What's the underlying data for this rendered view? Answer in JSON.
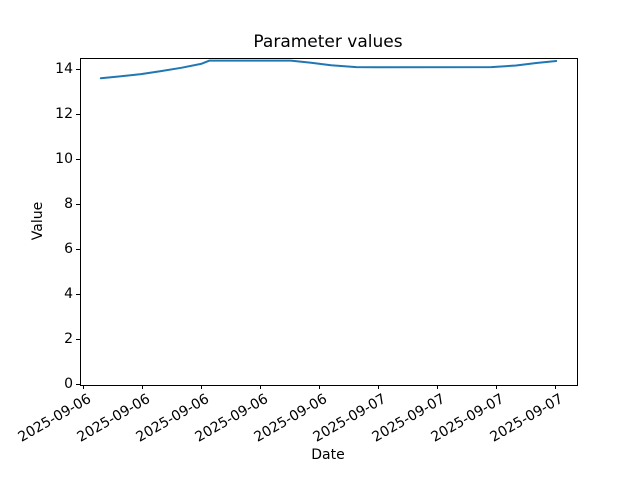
{
  "figure": {
    "background_color": "#ffffff",
    "spine_color": "#000000",
    "text_color": "#000000"
  },
  "chart_data": {
    "type": "line",
    "title": "Parameter values",
    "xlabel": "Date",
    "ylabel": "Value",
    "ylim": [
      0,
      14.5
    ],
    "yticks": [
      0,
      2,
      4,
      6,
      8,
      10,
      12,
      14
    ],
    "xtick_labels": [
      "2025-09-06",
      "2025-09-06",
      "2025-09-06",
      "2025-09-06",
      "2025-09-06",
      "2025-09-07",
      "2025-09-07",
      "2025-09-07",
      "2025-09-07"
    ],
    "xtick_rotation_deg": 30,
    "grid": false,
    "legend_position": "none",
    "layout_hints": {
      "x_tick_start_frac": 0.007,
      "x_tick_step_frac": 0.11875
    },
    "series": [
      {
        "name": "Parameter values",
        "color": "#1f77b4",
        "line_width": 2,
        "markers": false,
        "points_x_frac_value": [
          [
            0.04,
            13.64
          ],
          [
            0.081,
            13.73
          ],
          [
            0.121,
            13.83
          ],
          [
            0.161,
            13.96
          ],
          [
            0.202,
            14.11
          ],
          [
            0.242,
            14.28
          ],
          [
            0.259,
            14.43
          ],
          [
            0.423,
            14.43
          ],
          [
            0.464,
            14.33
          ],
          [
            0.504,
            14.22
          ],
          [
            0.555,
            14.14
          ],
          [
            0.596,
            14.13
          ],
          [
            0.827,
            14.14
          ],
          [
            0.877,
            14.21
          ],
          [
            0.918,
            14.32
          ],
          [
            0.958,
            14.41
          ]
        ]
      }
    ]
  }
}
